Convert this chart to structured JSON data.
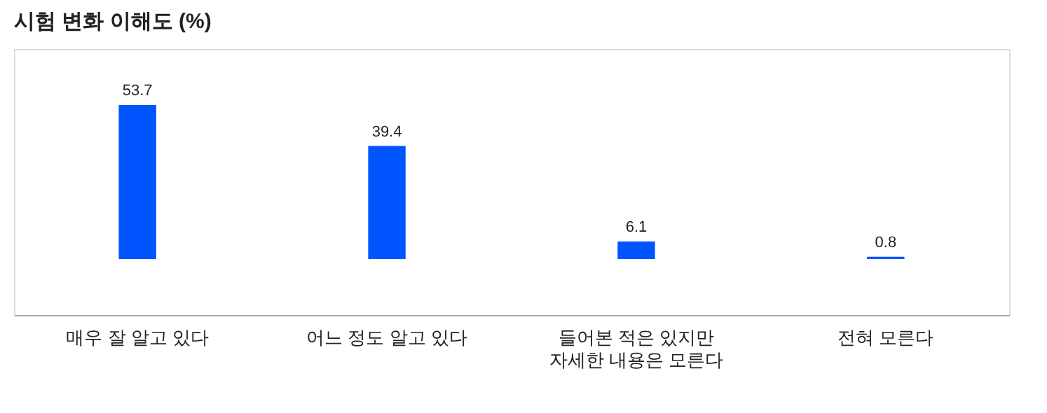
{
  "chart_data": {
    "type": "bar",
    "title": "시험 변화 이해도 (%)",
    "categories": [
      "매우 잘 알고 있다",
      "어느 정도 알고 있다",
      "들어본 적은 있지만 자세한 내용은 모른다",
      "전혀 모른다"
    ],
    "values": [
      53.7,
      39.4,
      6.1,
      0.8
    ],
    "color": "#0055ff",
    "data_labels": true,
    "tick_labels": "x"
  }
}
